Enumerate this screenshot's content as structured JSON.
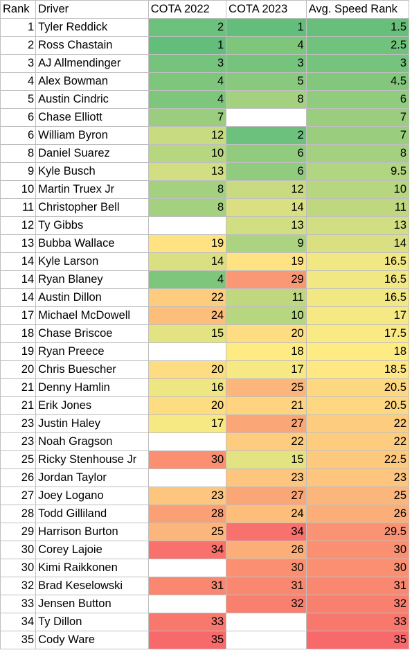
{
  "chart_data": {
    "type": "table",
    "columns": [
      "Rank",
      "Driver",
      "COTA 2022",
      "COTA 2023",
      "Avg. Speed Rank"
    ],
    "rows": [
      {
        "rank": 1,
        "driver": "Tyler Reddick",
        "cota2022": 2,
        "cota2023": 1,
        "avg": 1.5
      },
      {
        "rank": 2,
        "driver": "Ross Chastain",
        "cota2022": 1,
        "cota2023": 4,
        "avg": 2.5
      },
      {
        "rank": 3,
        "driver": "AJ Allmendinger",
        "cota2022": 3,
        "cota2023": 3,
        "avg": 3
      },
      {
        "rank": 4,
        "driver": "Alex Bowman",
        "cota2022": 4,
        "cota2023": 5,
        "avg": 4.5
      },
      {
        "rank": 5,
        "driver": "Austin Cindric",
        "cota2022": 4,
        "cota2023": 8,
        "avg": 6
      },
      {
        "rank": 6,
        "driver": "Chase Elliott",
        "cota2022": 7,
        "cota2023": null,
        "avg": 7
      },
      {
        "rank": 6,
        "driver": "William Byron",
        "cota2022": 12,
        "cota2023": 2,
        "avg": 7
      },
      {
        "rank": 8,
        "driver": "Daniel Suarez",
        "cota2022": 10,
        "cota2023": 6,
        "avg": 8
      },
      {
        "rank": 9,
        "driver": "Kyle Busch",
        "cota2022": 13,
        "cota2023": 6,
        "avg": 9.5
      },
      {
        "rank": 10,
        "driver": "Martin Truex Jr",
        "cota2022": 8,
        "cota2023": 12,
        "avg": 10
      },
      {
        "rank": 11,
        "driver": "Christopher Bell",
        "cota2022": 8,
        "cota2023": 14,
        "avg": 11
      },
      {
        "rank": 12,
        "driver": "Ty Gibbs",
        "cota2022": null,
        "cota2023": 13,
        "avg": 13
      },
      {
        "rank": 13,
        "driver": "Bubba Wallace",
        "cota2022": 19,
        "cota2023": 9,
        "avg": 14
      },
      {
        "rank": 14,
        "driver": "Kyle Larson",
        "cota2022": 14,
        "cota2023": 19,
        "avg": 16.5
      },
      {
        "rank": 14,
        "driver": "Ryan Blaney",
        "cota2022": 4,
        "cota2023": 29,
        "avg": 16.5
      },
      {
        "rank": 14,
        "driver": "Austin Dillon",
        "cota2022": 22,
        "cota2023": 11,
        "avg": 16.5
      },
      {
        "rank": 17,
        "driver": "Michael McDowell",
        "cota2022": 24,
        "cota2023": 10,
        "avg": 17
      },
      {
        "rank": 18,
        "driver": "Chase Briscoe",
        "cota2022": 15,
        "cota2023": 20,
        "avg": 17.5
      },
      {
        "rank": 19,
        "driver": "Ryan Preece",
        "cota2022": null,
        "cota2023": 18,
        "avg": 18
      },
      {
        "rank": 20,
        "driver": "Chris Buescher",
        "cota2022": 20,
        "cota2023": 17,
        "avg": 18.5
      },
      {
        "rank": 21,
        "driver": "Denny Hamlin",
        "cota2022": 16,
        "cota2023": 25,
        "avg": 20.5
      },
      {
        "rank": 21,
        "driver": "Erik Jones",
        "cota2022": 20,
        "cota2023": 21,
        "avg": 20.5
      },
      {
        "rank": 23,
        "driver": "Justin Haley",
        "cota2022": 17,
        "cota2023": 27,
        "avg": 22
      },
      {
        "rank": 23,
        "driver": "Noah Gragson",
        "cota2022": null,
        "cota2023": 22,
        "avg": 22
      },
      {
        "rank": 25,
        "driver": "Ricky Stenhouse Jr",
        "cota2022": 30,
        "cota2023": 15,
        "avg": 22.5
      },
      {
        "rank": 26,
        "driver": "Jordan Taylor",
        "cota2022": null,
        "cota2023": 23,
        "avg": 23
      },
      {
        "rank": 27,
        "driver": "Joey Logano",
        "cota2022": 23,
        "cota2023": 27,
        "avg": 25
      },
      {
        "rank": 28,
        "driver": "Todd Gilliland",
        "cota2022": 28,
        "cota2023": 24,
        "avg": 26
      },
      {
        "rank": 29,
        "driver": "Harrison Burton",
        "cota2022": 25,
        "cota2023": 34,
        "avg": 29.5
      },
      {
        "rank": 30,
        "driver": "Corey Lajoie",
        "cota2022": 34,
        "cota2023": 26,
        "avg": 30
      },
      {
        "rank": 30,
        "driver": "Kimi Raikkonen",
        "cota2022": null,
        "cota2023": 30,
        "avg": 30
      },
      {
        "rank": 32,
        "driver": "Brad Keselowski",
        "cota2022": 31,
        "cota2023": 31,
        "avg": 31
      },
      {
        "rank": 33,
        "driver": "Jensen Button",
        "cota2022": null,
        "cota2023": 32,
        "avg": 32
      },
      {
        "rank": 34,
        "driver": "Ty Dillon",
        "cota2022": 33,
        "cota2023": null,
        "avg": 33
      },
      {
        "rank": 35,
        "driver": "Cody Ware",
        "cota2022": 35,
        "cota2023": null,
        "avg": 35
      }
    ],
    "color_scale": {
      "low": "#63be7b",
      "mid": "#ffeb84",
      "high": "#f8696b",
      "empty": "#ffffff"
    }
  }
}
